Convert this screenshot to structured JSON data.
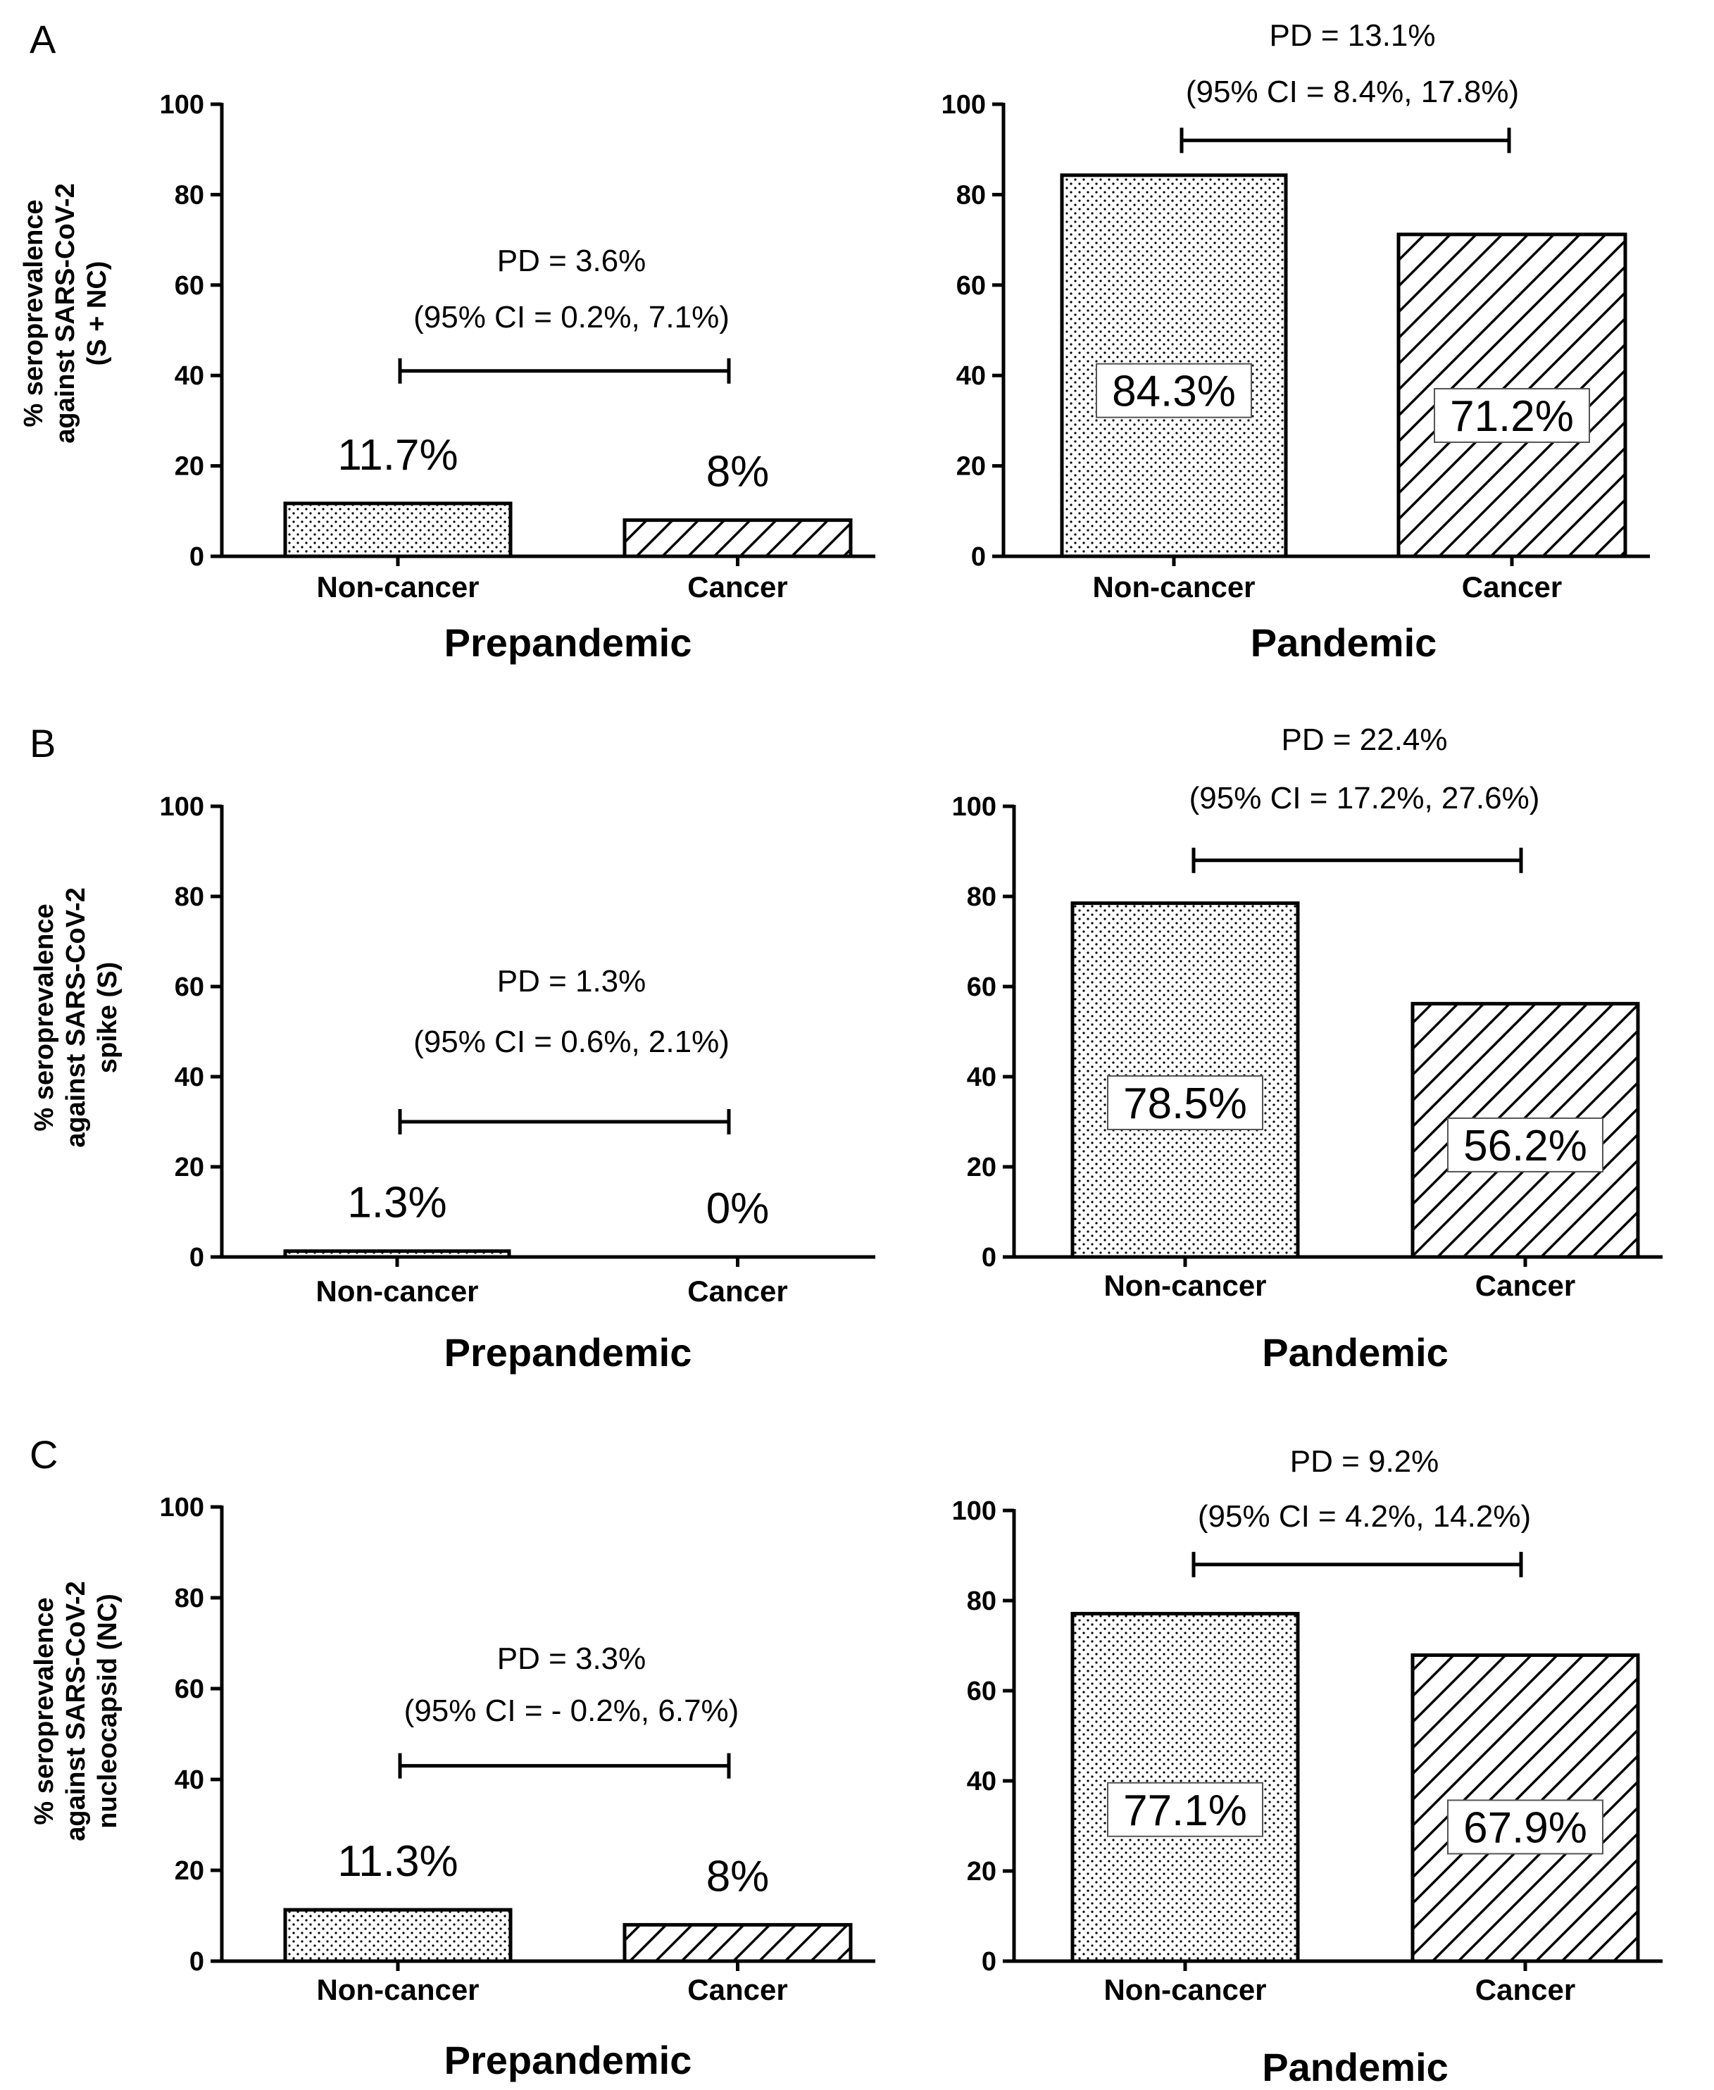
{
  "panels": [
    {
      "letter": "A",
      "ylabel": [
        "% seroprevalence",
        "against SARS-CoV-2",
        "(S + NC)"
      ]
    },
    {
      "letter": "B",
      "ylabel": [
        "% seroprevalence",
        "against SARS-CoV-2",
        "spike (S)"
      ]
    },
    {
      "letter": "C",
      "ylabel": [
        "% seroprevalence",
        "against SARS-CoV-2",
        "nucleocapsid (NC)"
      ]
    }
  ],
  "colors": {
    "axis": "#000000",
    "fill": "#ffffff",
    "dots": "#000000",
    "hatch": "#000000"
  },
  "chart_data": [
    {
      "id": "A-prepandemic",
      "panel": "A",
      "type": "bar",
      "title": "Prepandemic",
      "categories": [
        "Non-cancer",
        "Cancer"
      ],
      "values": [
        11.7,
        8
      ],
      "labels": [
        "11.7%",
        "8%"
      ],
      "label_style": "above",
      "ylim": [
        0,
        100
      ],
      "yticks": [
        0,
        20,
        40,
        60,
        80,
        100
      ],
      "annotation": {
        "line1": "PD = 3.6%",
        "line2": "(95% CI = 0.2%, 7.1%)",
        "bracket_y": 41
      }
    },
    {
      "id": "A-pandemic",
      "panel": "A",
      "type": "bar",
      "title": "Pandemic",
      "categories": [
        "Non-cancer",
        "Cancer"
      ],
      "values": [
        84.3,
        71.2
      ],
      "labels": [
        "84.3%",
        "71.2%"
      ],
      "label_style": "inside",
      "ylim": [
        0,
        100
      ],
      "yticks": [
        0,
        20,
        40,
        60,
        80,
        100
      ],
      "annotation": {
        "line1": "PD = 13.1%",
        "line2": "(95% CI = 8.4%, 17.8%)",
        "bracket_y": 92
      }
    },
    {
      "id": "B-prepandemic",
      "panel": "B",
      "type": "bar",
      "title": "Prepandemic",
      "categories": [
        "Non-cancer",
        "Cancer"
      ],
      "values": [
        1.3,
        0
      ],
      "labels": [
        "1.3%",
        "0%"
      ],
      "label_style": "above",
      "ylim": [
        0,
        100
      ],
      "yticks": [
        0,
        20,
        40,
        60,
        80,
        100
      ],
      "annotation": {
        "line1": "PD = 1.3%",
        "line2": "(95% CI = 0.6%, 2.1%)",
        "bracket_y": 30
      }
    },
    {
      "id": "B-pandemic",
      "panel": "B",
      "type": "bar",
      "title": "Pandemic",
      "categories": [
        "Non-cancer",
        "Cancer"
      ],
      "values": [
        78.5,
        56.2
      ],
      "labels": [
        "78.5%",
        "56.2%"
      ],
      "label_style": "inside",
      "ylim": [
        0,
        100
      ],
      "yticks": [
        0,
        20,
        40,
        60,
        80,
        100
      ],
      "annotation": {
        "line1": "PD = 22.4%",
        "line2": "(95% CI = 17.2%, 27.6%)",
        "bracket_y": 88
      }
    },
    {
      "id": "C-prepandemic",
      "panel": "C",
      "type": "bar",
      "title": "Prepandemic",
      "categories": [
        "Non-cancer",
        "Cancer"
      ],
      "values": [
        11.3,
        8
      ],
      "labels": [
        "11.3%",
        "8%"
      ],
      "label_style": "above",
      "ylim": [
        0,
        100
      ],
      "yticks": [
        0,
        20,
        40,
        60,
        80,
        100
      ],
      "annotation": {
        "line1": "PD = 3.3%",
        "line2": "(95% CI = - 0.2%, 6.7%)",
        "bracket_y": 43
      }
    },
    {
      "id": "C-pandemic",
      "panel": "C",
      "type": "bar",
      "title": "Pandemic",
      "categories": [
        "Non-cancer",
        "Cancer"
      ],
      "values": [
        77.1,
        67.9
      ],
      "labels": [
        "77.1%",
        "67.9%"
      ],
      "label_style": "inside",
      "ylim": [
        0,
        100
      ],
      "yticks": [
        0,
        20,
        40,
        60,
        80,
        100
      ],
      "annotation": {
        "line1": "PD = 9.2%",
        "line2": "(95% CI = 4.2%, 14.2%)",
        "bracket_y": 88
      }
    }
  ]
}
